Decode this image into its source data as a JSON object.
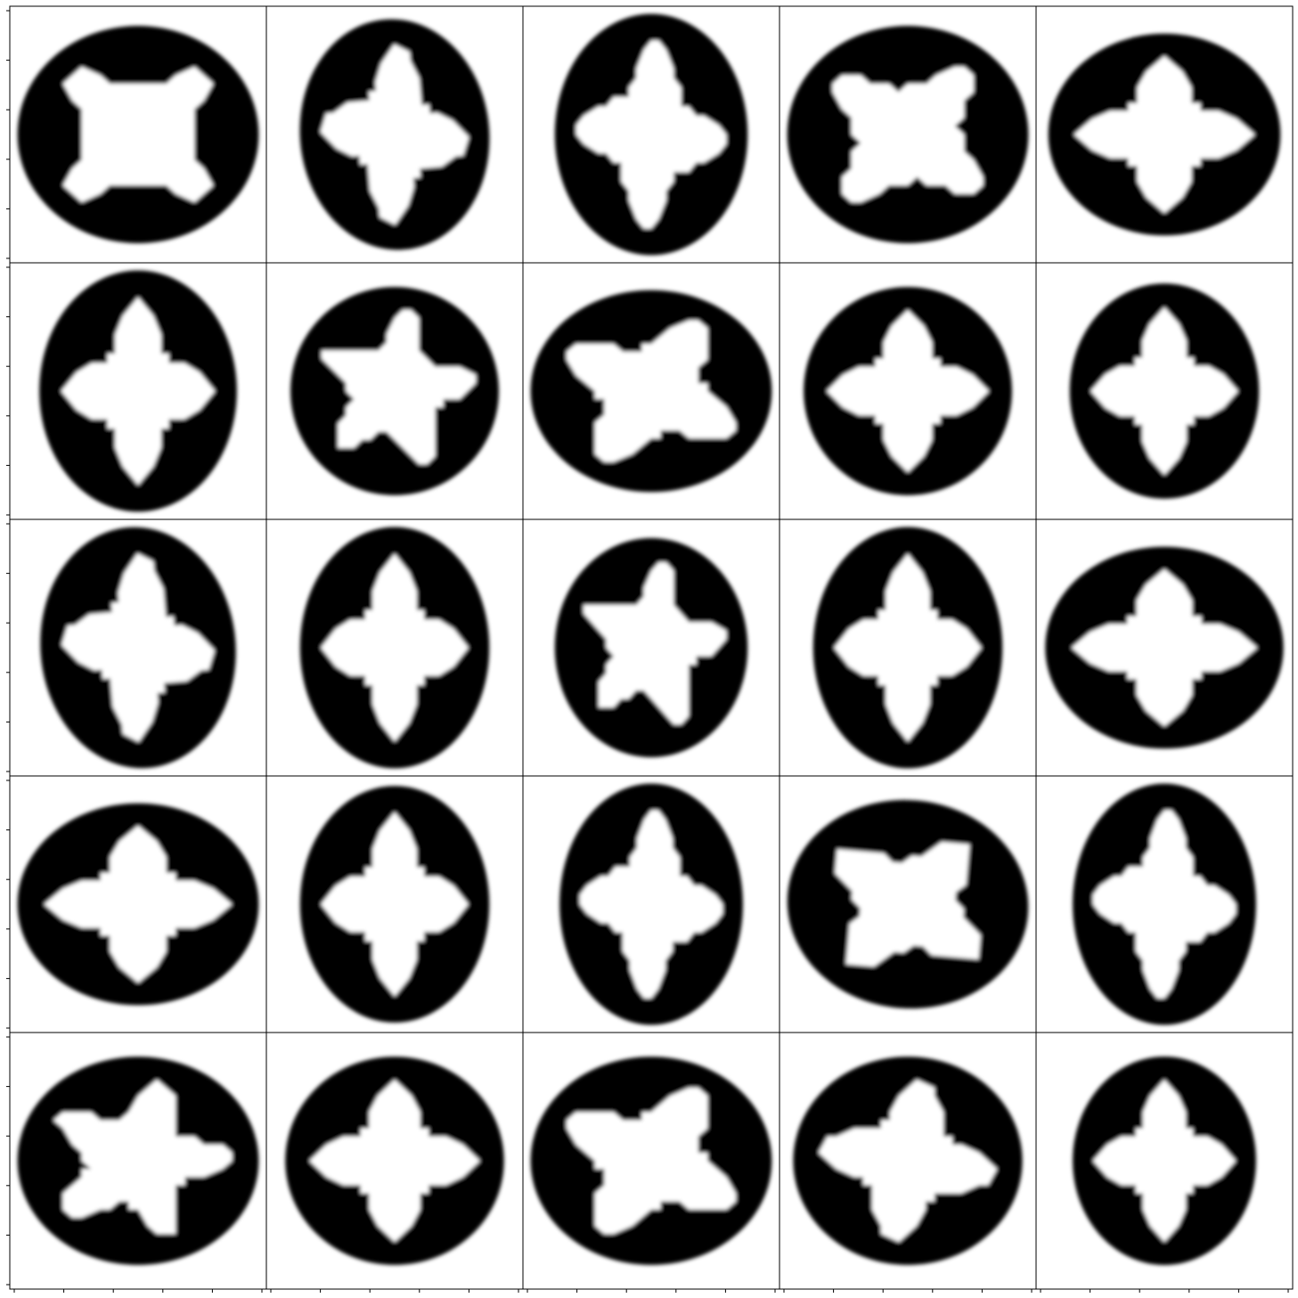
{
  "figure": {
    "rows": 5,
    "cols": 5,
    "colormap": "gray_r",
    "background": "#ffffff",
    "ink": "#000000",
    "frame_color": "#000000",
    "tick_labels_visible": false,
    "ticks_visible": true
  },
  "samples": [
    {
      "row": 0,
      "col": 0,
      "aspect": 1.3,
      "tilt": 0,
      "star_points": 4,
      "star_rotation": 45,
      "fill": 0.62
    },
    {
      "row": 0,
      "col": 1,
      "aspect": 0.82,
      "tilt": -5,
      "star_points": 4,
      "star_rotation": 10,
      "fill": 0.55
    },
    {
      "row": 0,
      "col": 2,
      "aspect": 0.74,
      "tilt": 0,
      "star_points": 4,
      "star_rotation": 5,
      "fill": 0.58
    },
    {
      "row": 0,
      "col": 3,
      "aspect": 1.4,
      "tilt": 0,
      "star_points": 4,
      "star_rotation": 40,
      "fill": 0.62
    },
    {
      "row": 0,
      "col": 4,
      "aspect": 1.15,
      "tilt": 0,
      "star_points": 4,
      "star_rotation": 0,
      "fill": 0.5
    },
    {
      "row": 1,
      "col": 0,
      "aspect": 0.68,
      "tilt": 0,
      "star_points": 4,
      "star_rotation": 0,
      "fill": 0.62
    },
    {
      "row": 1,
      "col": 1,
      "aspect": 1.0,
      "tilt": 0,
      "star_points": 5,
      "star_rotation": 10,
      "fill": 0.55
    },
    {
      "row": 1,
      "col": 2,
      "aspect": 1.25,
      "tilt": 0,
      "star_points": 4,
      "star_rotation": 30,
      "fill": 0.5
    },
    {
      "row": 1,
      "col": 3,
      "aspect": 1.0,
      "tilt": 0,
      "star_points": 4,
      "star_rotation": 0,
      "fill": 0.55
    },
    {
      "row": 1,
      "col": 4,
      "aspect": 0.88,
      "tilt": 0,
      "star_points": 4,
      "star_rotation": 0,
      "fill": 0.55
    },
    {
      "row": 2,
      "col": 0,
      "aspect": 0.72,
      "tilt": -5,
      "star_points": 4,
      "star_rotation": 10,
      "fill": 0.6
    },
    {
      "row": 2,
      "col": 1,
      "aspect": 0.72,
      "tilt": 0,
      "star_points": 4,
      "star_rotation": 0,
      "fill": 0.55
    },
    {
      "row": 2,
      "col": 2,
      "aspect": 0.88,
      "tilt": 0,
      "star_points": 5,
      "star_rotation": 10,
      "fill": 0.58
    },
    {
      "row": 2,
      "col": 3,
      "aspect": 0.7,
      "tilt": 0,
      "star_points": 4,
      "star_rotation": 0,
      "fill": 0.55
    },
    {
      "row": 2,
      "col": 4,
      "aspect": 1.18,
      "tilt": 0,
      "star_points": 4,
      "star_rotation": 0,
      "fill": 0.5
    },
    {
      "row": 3,
      "col": 0,
      "aspect": 1.25,
      "tilt": 0,
      "star_points": 4,
      "star_rotation": 0,
      "fill": 0.5
    },
    {
      "row": 3,
      "col": 1,
      "aspect": 0.8,
      "tilt": 0,
      "star_points": 4,
      "star_rotation": 0,
      "fill": 0.55
    },
    {
      "row": 3,
      "col": 2,
      "aspect": 0.7,
      "tilt": 0,
      "star_points": 4,
      "star_rotation": 5,
      "fill": 0.5
    },
    {
      "row": 3,
      "col": 3,
      "aspect": 1.42,
      "tilt": 5,
      "star_points": 4,
      "star_rotation": 35,
      "fill": 0.55
    },
    {
      "row": 3,
      "col": 4,
      "aspect": 0.7,
      "tilt": 0,
      "star_points": 4,
      "star_rotation": 5,
      "fill": 0.5
    },
    {
      "row": 4,
      "col": 0,
      "aspect": 1.18,
      "tilt": 0,
      "star_points": 5,
      "star_rotation": 15,
      "fill": 0.55
    },
    {
      "row": 4,
      "col": 1,
      "aspect": 1.05,
      "tilt": 0,
      "star_points": 4,
      "star_rotation": 0,
      "fill": 0.55
    },
    {
      "row": 4,
      "col": 2,
      "aspect": 1.32,
      "tilt": 0,
      "star_points": 4,
      "star_rotation": 30,
      "fill": 0.55
    },
    {
      "row": 4,
      "col": 3,
      "aspect": 1.1,
      "tilt": 0,
      "star_points": 4,
      "star_rotation": 10,
      "fill": 0.55
    },
    {
      "row": 4,
      "col": 4,
      "aspect": 0.88,
      "tilt": 0,
      "star_points": 4,
      "star_rotation": 0,
      "fill": 0.5
    }
  ]
}
